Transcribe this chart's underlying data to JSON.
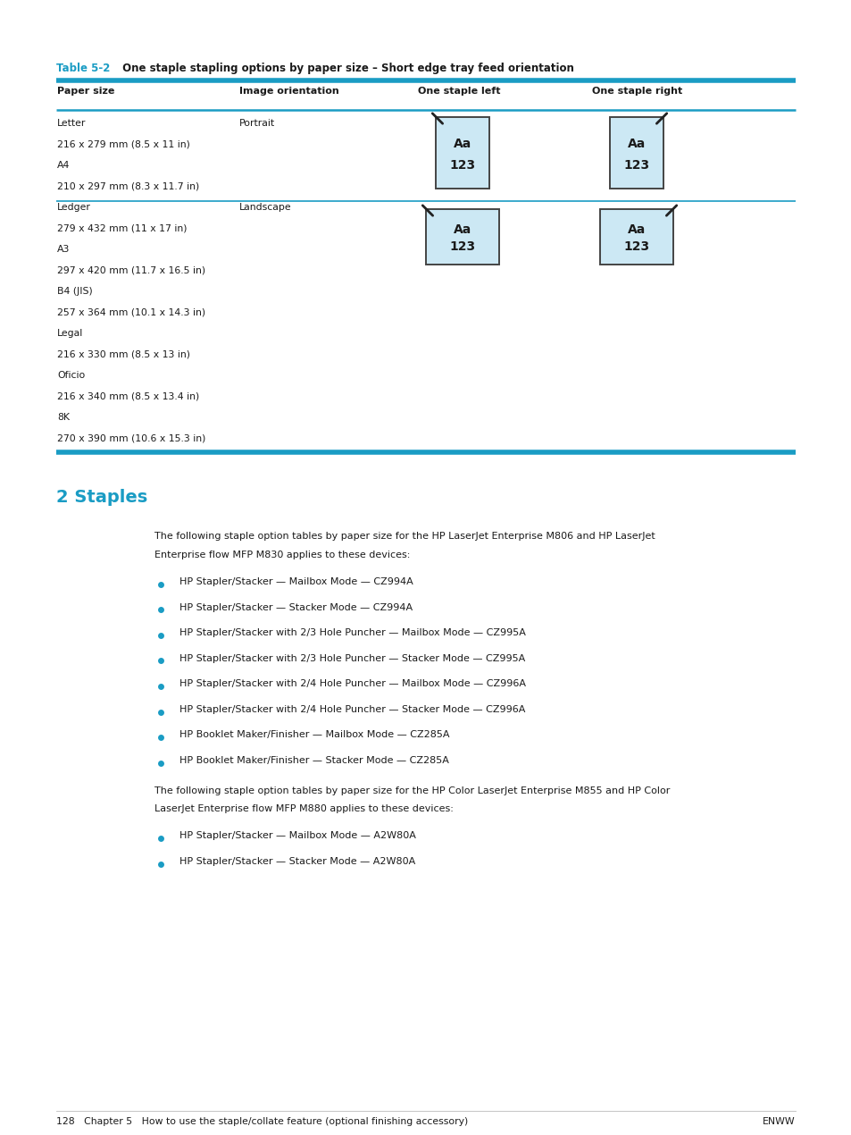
{
  "bg_color": "#ffffff",
  "cyan": "#1a9cc4",
  "table_title_bold": "Table 5-2",
  "table_title_rest": " One staple stapling options by paper size – Short edge tray feed orientation",
  "col_headers": [
    "Paper size",
    "Image orientation",
    "One staple left",
    "One staple right"
  ],
  "table_rows": [
    [
      "Letter",
      "Portrait"
    ],
    [
      "216 x 279 mm (8.5 x 11 in)",
      ""
    ],
    [
      "A4",
      ""
    ],
    [
      "210 x 297 mm (8.3 x 11.7 in)",
      ""
    ],
    [
      "Ledger",
      "Landscape"
    ],
    [
      "279 x 432 mm (11 x 17 in)",
      ""
    ],
    [
      "A3",
      ""
    ],
    [
      "297 x 420 mm (11.7 x 16.5 in)",
      ""
    ],
    [
      "B4 (JIS)",
      ""
    ],
    [
      "257 x 364 mm (10.1 x 14.3 in)",
      ""
    ],
    [
      "Legal",
      ""
    ],
    [
      "216 x 330 mm (8.5 x 13 in)",
      ""
    ],
    [
      "Oficio",
      ""
    ],
    [
      "216 x 340 mm (8.5 x 13.4 in)",
      ""
    ],
    [
      "8K",
      ""
    ],
    [
      "270 x 390 mm (10.6 x 15.3 in)",
      ""
    ]
  ],
  "section_title": "2 Staples",
  "para1": "The following staple option tables by paper size for the HP LaserJet Enterprise M806 and HP LaserJet\nEnterprise flow MFP M830 applies to these devices:",
  "bullets1": [
    "HP Stapler/Stacker — Mailbox Mode — CZ994A",
    "HP Stapler/Stacker — Stacker Mode — CZ994A",
    "HP Stapler/Stacker with 2/3 Hole Puncher — Mailbox Mode — CZ995A",
    "HP Stapler/Stacker with 2/3 Hole Puncher — Stacker Mode — CZ995A",
    "HP Stapler/Stacker with 2/4 Hole Puncher — Mailbox Mode — CZ996A",
    "HP Stapler/Stacker with 2/4 Hole Puncher — Stacker Mode — CZ996A",
    "HP Booklet Maker/Finisher — Mailbox Mode — CZ285A",
    "HP Booklet Maker/Finisher — Stacker Mode — CZ285A"
  ],
  "para2": "The following staple option tables by paper size for the HP Color LaserJet Enterprise M855 and HP Color\nLaserJet Enterprise flow MFP M880 applies to these devices:",
  "bullets2": [
    "HP Stapler/Stacker — Mailbox Mode — A2W80A",
    "HP Stapler/Stacker — Stacker Mode — A2W80A"
  ],
  "footer_left": "128   Chapter 5   How to use the staple/collate feature (optional finishing accessory)",
  "footer_right": "ENWW",
  "ml_in": 0.63,
  "mr_in": 0.63
}
